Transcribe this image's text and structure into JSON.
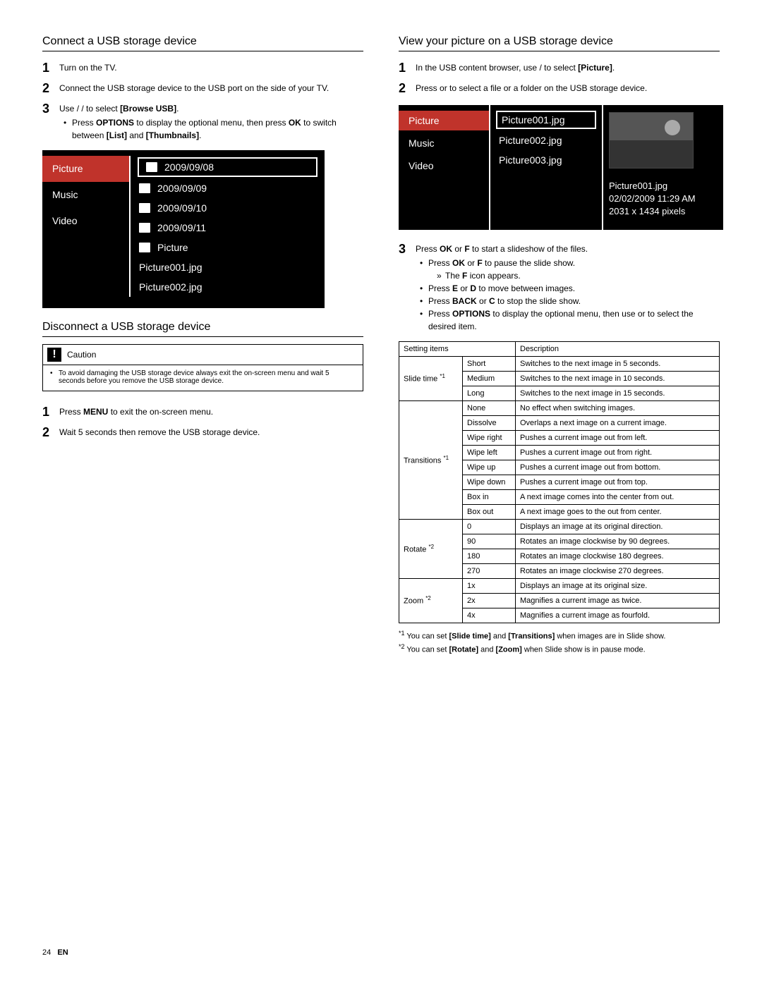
{
  "left": {
    "section1_title": "Connect a USB storage device",
    "s1_step1": "Turn on the TV.",
    "s1_step2": "Connect the USB storage device to the USB port on the side of your TV.",
    "s1_step3_a": "Use ",
    "s1_step3_b": " / ",
    "s1_step3_c": " / ",
    "s1_step3_d": " to select ",
    "s1_step3_bold": "[Browse USB]",
    "s1_step3_end": ".",
    "s1_step3_sub_a": "Press ",
    "s1_step3_sub_opt": "OPTIONS",
    "s1_step3_sub_b": " to display the optional menu, then press ",
    "s1_step3_sub_ok": "OK",
    "s1_step3_sub_c": " to switch between ",
    "s1_step3_sub_list": "[List]",
    "s1_step3_sub_and": " and ",
    "s1_step3_sub_thumb": "[Thumbnails]",
    "s1_step3_sub_end": ".",
    "section2_title": "Disconnect a USB storage device",
    "caution_label": "Caution",
    "caution_text": "To avoid damaging the USB storage device always exit the on-screen menu and wait 5 seconds before you remove the USB storage device.",
    "s2_step1_a": "Press ",
    "s2_step1_menu": "MENU",
    "s2_step1_b": " to exit the on-screen menu.",
    "s2_step2": "Wait 5 seconds then remove the USB storage device."
  },
  "ui1": {
    "left1": "Picture",
    "left2": "Music",
    "left3": "Video",
    "r1": "2009/09/08",
    "r2": "2009/09/09",
    "r3": "2009/09/10",
    "r4": "2009/09/11",
    "r5": "Picture",
    "r6": "Picture001.jpg",
    "r7": "Picture002.jpg"
  },
  "right": {
    "section_title": "View your picture on a USB storage device",
    "step1_a": "In the USB content browser, use ",
    "step1_b": " / ",
    "step1_c": " to select ",
    "step1_bold": "[Picture]",
    "step1_end": ".",
    "step2_a": "Press ",
    "step2_b": " or ",
    "step2_c": " to select a ﬁle or a folder on the USB storage device.",
    "step3_a": "Press ",
    "step3_ok": "OK",
    "step3_or": " or ",
    "step3_f": "F",
    "step3_b": " to start a slideshow of the ﬁles.",
    "b1_a": "Press ",
    "b1_ok": "OK",
    "b1_or": " or ",
    "b1_f": "F",
    "b1_b": " to pause the slide show.",
    "b1_sub_a": "The ",
    "b1_sub_f": "F",
    "b1_sub_b": " icon appears.",
    "b2_a": "Press ",
    "b2_e": "E",
    "b2_or": " or ",
    "b2_d": "D",
    "b2_b": " to move between images.",
    "b3_a": "Press ",
    "b3_back": "BACK",
    "b3_or": " or ",
    "b3_c": "C",
    "b3_b": " to stop the slide show.",
    "b4_a": "Press ",
    "b4_opt": "OPTIONS",
    "b4_b": " to display the optional menu, then use ",
    "b4_c": " or ",
    "b4_d": " to select the desired item."
  },
  "ui2": {
    "left1": "Picture",
    "left2": "Music",
    "left3": "Video",
    "m1": "Picture001.jpg",
    "m2": "Picture002.jpg",
    "m3": "Picture003.jpg",
    "meta1": "Picture001.jpg",
    "meta2": "02/02/2009 11:29 AM",
    "meta3": "2031 x 1434 pixels"
  },
  "table": {
    "h1": "Setting items",
    "h2": "Description",
    "slide_label": "Slide time ",
    "slide_note": "*1",
    "slide_r1v": "Short",
    "slide_r1d": "Switches to the next image in 5 seconds.",
    "slide_r2v": "Medium",
    "slide_r2d": "Switches to the next image in 10 seconds.",
    "slide_r3v": "Long",
    "slide_r3d": "Switches to the next image in 15 seconds.",
    "trans_label": "Transitions ",
    "trans_note": "*1",
    "trans_r1v": "None",
    "trans_r1d": "No effect when switching images.",
    "trans_r2v": "Dissolve",
    "trans_r2d": "Overlaps a next image on a current image.",
    "trans_r3v": "Wipe right",
    "trans_r3d": "Pushes a current image out from left.",
    "trans_r4v": "Wipe left",
    "trans_r4d": "Pushes a current image out from right.",
    "trans_r5v": "Wipe up",
    "trans_r5d": "Pushes a current image out from bottom.",
    "trans_r6v": "Wipe down",
    "trans_r6d": "Pushes a current image out from top.",
    "trans_r7v": "Box in",
    "trans_r7d": "A next image comes into the center from out.",
    "trans_r8v": "Box out",
    "trans_r8d": "A next image goes to the out from center.",
    "rot_label": "Rotate ",
    "rot_note": "*2",
    "rot_r1v": "0",
    "rot_r1d": "Displays an image at its original direction.",
    "rot_r2v": "90",
    "rot_r2d": "Rotates an image clockwise by 90 degrees.",
    "rot_r3v": "180",
    "rot_r3d": "Rotates an image clockwise 180 degrees.",
    "rot_r4v": "270",
    "rot_r4d": "Rotates an image clockwise 270 degrees.",
    "zoom_label": "Zoom ",
    "zoom_note": "*2",
    "zoom_r1v": "1x",
    "zoom_r1d": "Displays an image at its original size.",
    "zoom_r2v": "2x",
    "zoom_r2d": "Magnifies a current image as twice.",
    "zoom_r3v": "4x",
    "zoom_r3d": "Magnifies a current image as fourfold."
  },
  "footnotes": {
    "n1a": "*1",
    "n1b": " You can set ",
    "n1c": "[Slide time]",
    "n1d": " and ",
    "n1e": "[Transitions]",
    "n1f": " when images are in Slide show.",
    "n2a": "*2",
    "n2b": " You can set ",
    "n2c": "[Rotate]",
    "n2d": " and ",
    "n2e": "[Zoom]",
    "n2f": " when Slide show is in pause mode."
  },
  "footer": {
    "page": "24",
    "lang": "EN"
  }
}
